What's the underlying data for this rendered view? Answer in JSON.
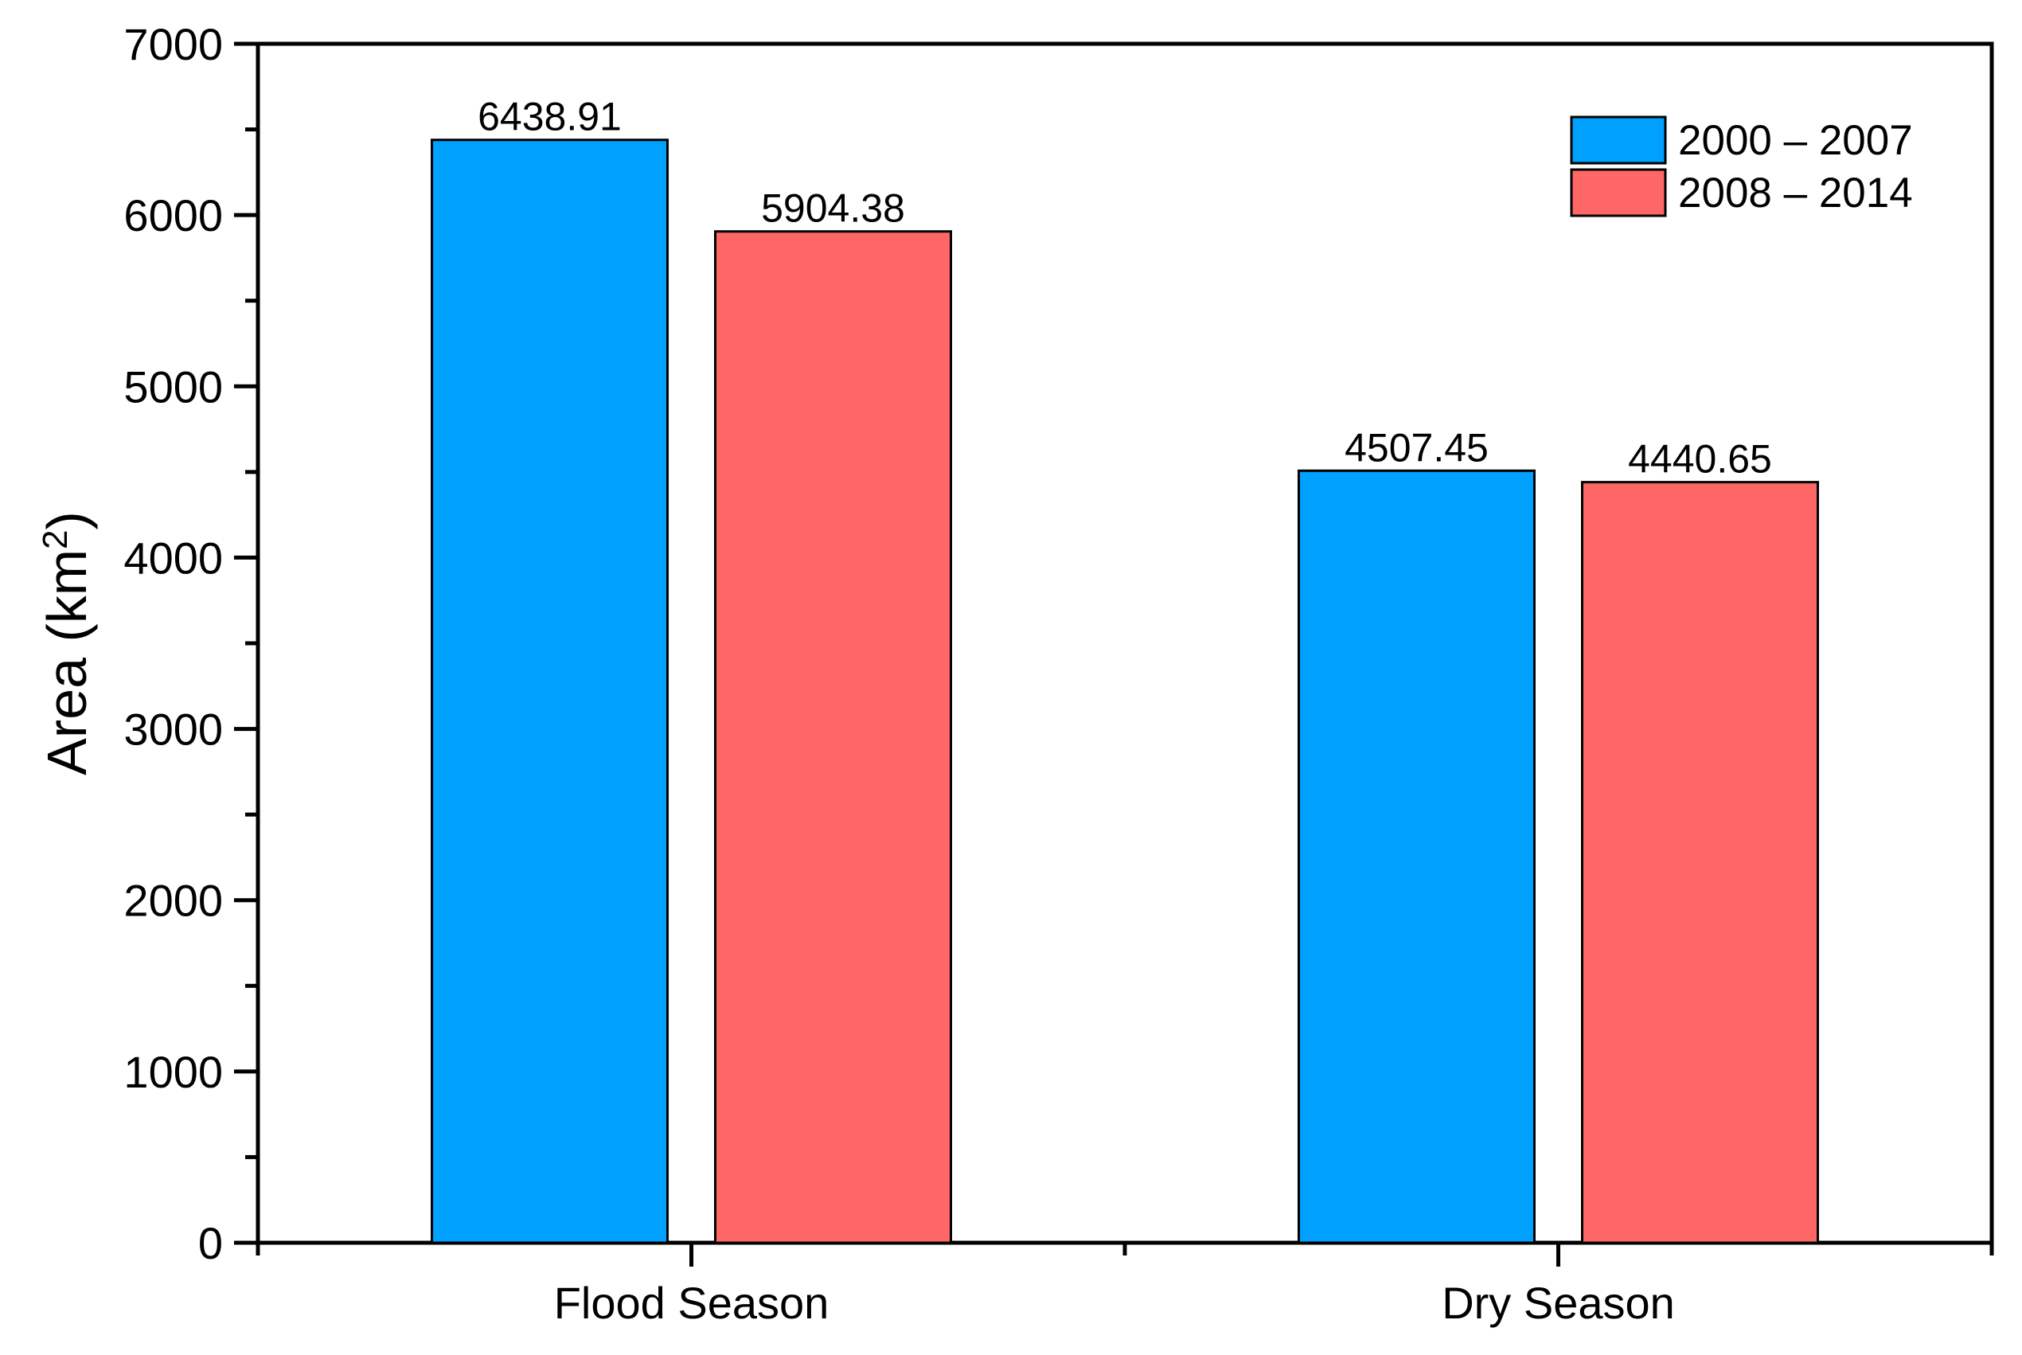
{
  "chart_data": {
    "type": "bar",
    "title": "",
    "xlabel": "",
    "ylabel": {
      "text": "Area (km",
      "superscript": "2",
      "suffix": ")"
    },
    "ylim": [
      0,
      7000
    ],
    "yticks": [
      0,
      1000,
      2000,
      3000,
      4000,
      5000,
      6000,
      7000
    ],
    "grid": false,
    "legend_position": "top-right",
    "categories": [
      "Flood Season",
      "Dry Season"
    ],
    "series": [
      {
        "name": "2000 – 2007",
        "color": "#00A0FF",
        "values": [
          6438.91,
          4507.45
        ],
        "labels": [
          "6438.91",
          "4507.45"
        ]
      },
      {
        "name": "2008 – 2014",
        "color": "#FF6666",
        "values": [
          5904.38,
          4440.65
        ],
        "labels": [
          "5904.38",
          "4440.65"
        ]
      }
    ]
  }
}
